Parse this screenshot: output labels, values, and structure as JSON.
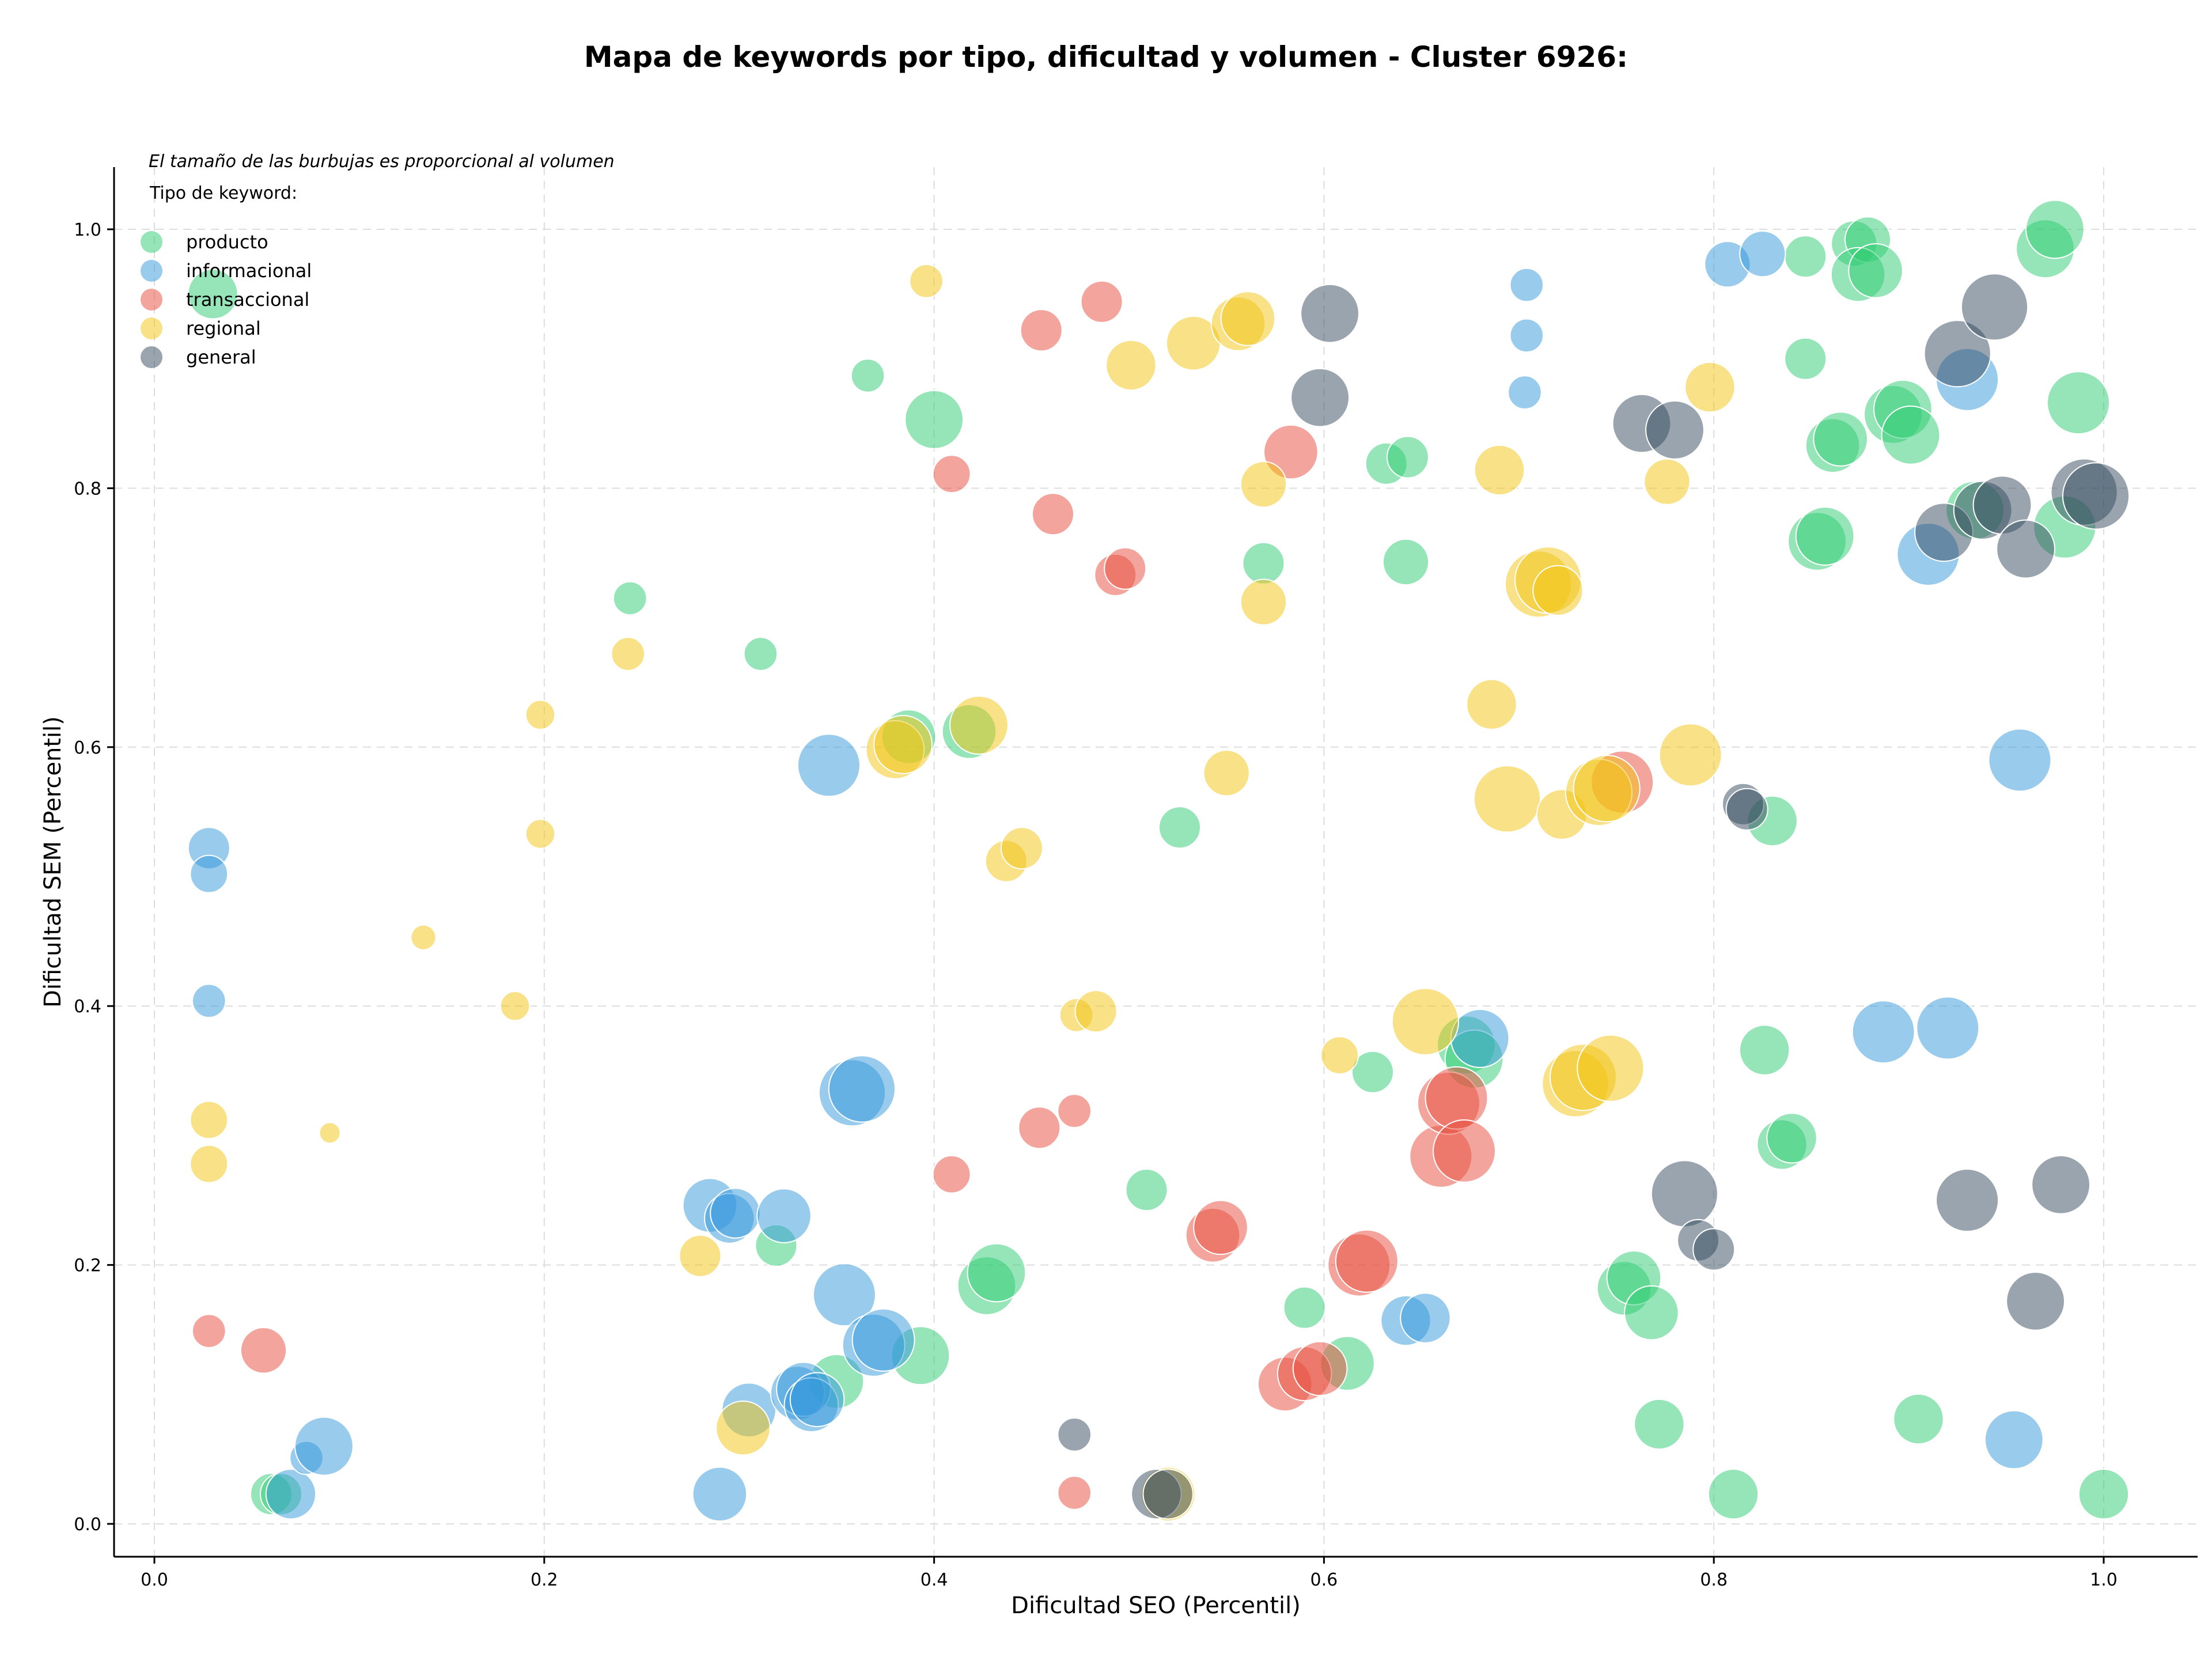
{
  "chart_data": {
    "type": "scatter",
    "title": "Mapa de keywords por tipo, dificultad y volumen - Cluster 6926:",
    "xlabel": "Dificultad SEO (Percentil)",
    "ylabel": "Dificultad SEM (Percentil)",
    "xlim": [
      -0.02,
      1.05
    ],
    "ylim": [
      -0.025,
      1.05
    ],
    "x_ticks": [
      "0.0",
      "0.2",
      "0.4",
      "0.6",
      "0.8",
      "1.0"
    ],
    "y_ticks": [
      "0.0",
      "0.2",
      "0.4",
      "0.6",
      "0.8",
      "1.0"
    ],
    "grid": true,
    "annotation": "El tamaño de las burbujas es proporcional al volumen",
    "legend_title": "Tipo de keyword:",
    "legend_position": "top-left",
    "series": [
      {
        "name": "producto",
        "color": "#2ecc71",
        "points": [
          [
            0.03,
            0.95,
            1.2
          ],
          [
            0.06,
            0.023,
            1.0
          ],
          [
            0.065,
            0.023,
            1.0
          ],
          [
            0.244,
            0.715,
            0.8
          ],
          [
            0.311,
            0.672,
            0.8
          ],
          [
            0.319,
            0.215,
            1.0
          ],
          [
            0.35,
            0.11,
            1.3
          ],
          [
            0.366,
            0.887,
            0.8
          ],
          [
            0.387,
            0.608,
            1.3
          ],
          [
            0.393,
            0.13,
            1.4
          ],
          [
            0.4,
            0.853,
            1.4
          ],
          [
            0.418,
            0.612,
            1.3
          ],
          [
            0.427,
            0.184,
            1.4
          ],
          [
            0.432,
            0.194,
            1.4
          ],
          [
            0.509,
            0.258,
            1.0
          ],
          [
            0.526,
            0.538,
            1.0
          ],
          [
            0.569,
            0.742,
            1.0
          ],
          [
            0.59,
            0.167,
            1.0
          ],
          [
            0.612,
            0.124,
            1.3
          ],
          [
            0.625,
            0.349,
            1.0
          ],
          [
            0.632,
            0.819,
            1.0
          ],
          [
            0.643,
            0.824,
            1.0
          ],
          [
            0.642,
            0.743,
            1.1
          ],
          [
            0.673,
            0.37,
            1.4
          ],
          [
            0.677,
            0.359,
            1.4
          ],
          [
            0.754,
            0.182,
            1.3
          ],
          [
            0.759,
            0.19,
            1.3
          ],
          [
            0.768,
            0.163,
            1.3
          ],
          [
            0.772,
            0.077,
            1.2
          ],
          [
            0.81,
            0.023,
            1.2
          ],
          [
            0.83,
            0.543,
            1.2
          ],
          [
            0.826,
            0.366,
            1.2
          ],
          [
            0.835,
            0.293,
            1.2
          ],
          [
            0.84,
            0.298,
            1.2
          ],
          [
            0.847,
            0.979,
            1.0
          ],
          [
            0.847,
            0.9,
            1.0
          ],
          [
            0.853,
            0.759,
            1.4
          ],
          [
            0.857,
            0.763,
            1.4
          ],
          [
            0.861,
            0.833,
            1.3
          ],
          [
            0.865,
            0.838,
            1.3
          ],
          [
            0.872,
            0.989,
            1.1
          ],
          [
            0.879,
            0.992,
            1.1
          ],
          [
            0.874,
            0.965,
            1.3
          ],
          [
            0.883,
            0.968,
            1.3
          ],
          [
            0.892,
            0.857,
            1.4
          ],
          [
            0.897,
            0.861,
            1.4
          ],
          [
            0.901,
            0.841,
            1.4
          ],
          [
            0.905,
            0.081,
            1.2
          ],
          [
            0.934,
            0.783,
            1.4
          ],
          [
            0.97,
            0.985,
            1.4
          ],
          [
            0.975,
            1.0,
            1.4
          ],
          [
            0.98,
            0.77,
            1.5
          ],
          [
            0.987,
            0.866,
            1.5
          ],
          [
            1.0,
            0.023,
            1.2
          ]
        ]
      },
      {
        "name": "informacional",
        "color": "#3498db",
        "points": [
          [
            0.028,
            0.522,
            1.0
          ],
          [
            0.028,
            0.502,
            0.9
          ],
          [
            0.028,
            0.404,
            0.8
          ],
          [
            0.07,
            0.023,
            1.2
          ],
          [
            0.078,
            0.051,
            0.8
          ],
          [
            0.087,
            0.06,
            1.4
          ],
          [
            0.29,
            0.023,
            1.3
          ],
          [
            0.285,
            0.246,
            1.3
          ],
          [
            0.295,
            0.236,
            1.2
          ],
          [
            0.298,
            0.24,
            1.2
          ],
          [
            0.305,
            0.088,
            1.3
          ],
          [
            0.323,
            0.238,
            1.3
          ],
          [
            0.33,
            0.101,
            1.3
          ],
          [
            0.333,
            0.104,
            1.3
          ],
          [
            0.337,
            0.092,
            1.3
          ],
          [
            0.34,
            0.096,
            1.3
          ],
          [
            0.346,
            0.586,
            1.5
          ],
          [
            0.354,
            0.177,
            1.5
          ],
          [
            0.358,
            0.333,
            1.6
          ],
          [
            0.363,
            0.336,
            1.6
          ],
          [
            0.369,
            0.138,
            1.5
          ],
          [
            0.374,
            0.142,
            1.5
          ],
          [
            0.642,
            0.157,
            1.2
          ],
          [
            0.652,
            0.159,
            1.2
          ],
          [
            0.68,
            0.375,
            1.4
          ],
          [
            0.704,
            0.957,
            0.8
          ],
          [
            0.704,
            0.918,
            0.8
          ],
          [
            0.703,
            0.874,
            0.8
          ],
          [
            0.807,
            0.973,
            1.1
          ],
          [
            0.825,
            0.981,
            1.1
          ],
          [
            0.887,
            0.38,
            1.5
          ],
          [
            0.91,
            0.749,
            1.5
          ],
          [
            0.92,
            0.383,
            1.5
          ],
          [
            0.93,
            0.884,
            1.5
          ],
          [
            0.954,
            0.065,
            1.4
          ],
          [
            0.957,
            0.59,
            1.5
          ]
        ]
      },
      {
        "name": "transaccional",
        "color": "#e74c3c",
        "points": [
          [
            0.028,
            0.149,
            0.8
          ],
          [
            0.056,
            0.134,
            1.1
          ],
          [
            0.409,
            0.811,
            0.9
          ],
          [
            0.409,
            0.27,
            0.9
          ],
          [
            0.455,
            0.922,
            1.0
          ],
          [
            0.454,
            0.306,
            1.0
          ],
          [
            0.461,
            0.78,
            1.0
          ],
          [
            0.472,
            0.024,
            0.8
          ],
          [
            0.472,
            0.319,
            0.8
          ],
          [
            0.486,
            0.944,
            1.0
          ],
          [
            0.493,
            0.733,
            1.0
          ],
          [
            0.498,
            0.738,
            1.0
          ],
          [
            0.543,
            0.223,
            1.3
          ],
          [
            0.547,
            0.229,
            1.3
          ],
          [
            0.583,
            0.828,
            1.3
          ],
          [
            0.58,
            0.108,
            1.3
          ],
          [
            0.59,
            0.116,
            1.3
          ],
          [
            0.598,
            0.12,
            1.3
          ],
          [
            0.618,
            0.2,
            1.5
          ],
          [
            0.622,
            0.203,
            1.5
          ],
          [
            0.66,
            0.284,
            1.5
          ],
          [
            0.664,
            0.325,
            1.5
          ],
          [
            0.668,
            0.329,
            1.5
          ],
          [
            0.672,
            0.288,
            1.5
          ],
          [
            0.753,
            0.573,
            1.5
          ]
        ]
      },
      {
        "name": "regional",
        "color": "#f1c40f",
        "points": [
          [
            0.028,
            0.312,
            0.9
          ],
          [
            0.028,
            0.278,
            0.9
          ],
          [
            0.09,
            0.302,
            0.5
          ],
          [
            0.138,
            0.453,
            0.6
          ],
          [
            0.185,
            0.4,
            0.7
          ],
          [
            0.198,
            0.625,
            0.7
          ],
          [
            0.198,
            0.533,
            0.7
          ],
          [
            0.243,
            0.672,
            0.8
          ],
          [
            0.28,
            0.207,
            1.0
          ],
          [
            0.302,
            0.074,
            1.3
          ],
          [
            0.38,
            0.598,
            1.4
          ],
          [
            0.384,
            0.602,
            1.4
          ],
          [
            0.396,
            0.96,
            0.8
          ],
          [
            0.423,
            0.617,
            1.4
          ],
          [
            0.437,
            0.512,
            1.0
          ],
          [
            0.445,
            0.522,
            1.0
          ],
          [
            0.473,
            0.393,
            0.8
          ],
          [
            0.483,
            0.396,
            1.0
          ],
          [
            0.501,
            0.895,
            1.2
          ],
          [
            0.52,
            0.023,
            1.3
          ],
          [
            0.533,
            0.912,
            1.3
          ],
          [
            0.55,
            0.58,
            1.1
          ],
          [
            0.556,
            0.927,
            1.3
          ],
          [
            0.561,
            0.931,
            1.3
          ],
          [
            0.569,
            0.803,
            1.1
          ],
          [
            0.569,
            0.712,
            1.1
          ],
          [
            0.608,
            0.362,
            0.9
          ],
          [
            0.652,
            0.388,
            1.6
          ],
          [
            0.686,
            0.633,
            1.2
          ],
          [
            0.69,
            0.814,
            1.2
          ],
          [
            0.694,
            0.56,
            1.6
          ],
          [
            0.71,
            0.726,
            1.6
          ],
          [
            0.715,
            0.729,
            1.6
          ],
          [
            0.72,
            0.721,
            1.2
          ],
          [
            0.722,
            0.548,
            1.2
          ],
          [
            0.729,
            0.34,
            1.6
          ],
          [
            0.733,
            0.345,
            1.6
          ],
          [
            0.741,
            0.565,
            1.6
          ],
          [
            0.745,
            0.568,
            1.6
          ],
          [
            0.747,
            0.352,
            1.6
          ],
          [
            0.776,
            0.805,
            1.1
          ],
          [
            0.788,
            0.594,
            1.5
          ],
          [
            0.798,
            0.878,
            1.2
          ]
        ]
      },
      {
        "name": "general",
        "color": "#34495e",
        "points": [
          [
            0.472,
            0.069,
            0.8
          ],
          [
            0.514,
            0.023,
            1.2
          ],
          [
            0.52,
            0.023,
            1.2
          ],
          [
            0.598,
            0.87,
            1.4
          ],
          [
            0.603,
            0.935,
            1.4
          ],
          [
            0.763,
            0.85,
            1.4
          ],
          [
            0.78,
            0.845,
            1.4
          ],
          [
            0.785,
            0.255,
            1.6
          ],
          [
            0.792,
            0.219,
            1.0
          ],
          [
            0.8,
            0.212,
            1.0
          ],
          [
            0.815,
            0.556,
            1.0
          ],
          [
            0.817,
            0.552,
            1.0
          ],
          [
            0.918,
            0.766,
            1.4
          ],
          [
            0.925,
            0.904,
            1.6
          ],
          [
            0.93,
            0.25,
            1.5
          ],
          [
            0.938,
            0.783,
            1.4
          ],
          [
            0.944,
            0.94,
            1.6
          ],
          [
            0.948,
            0.787,
            1.4
          ],
          [
            0.96,
            0.753,
            1.4
          ],
          [
            0.965,
            0.172,
            1.4
          ],
          [
            0.978,
            0.262,
            1.4
          ],
          [
            0.99,
            0.797,
            1.6
          ],
          [
            0.996,
            0.794,
            1.6
          ]
        ]
      }
    ]
  }
}
